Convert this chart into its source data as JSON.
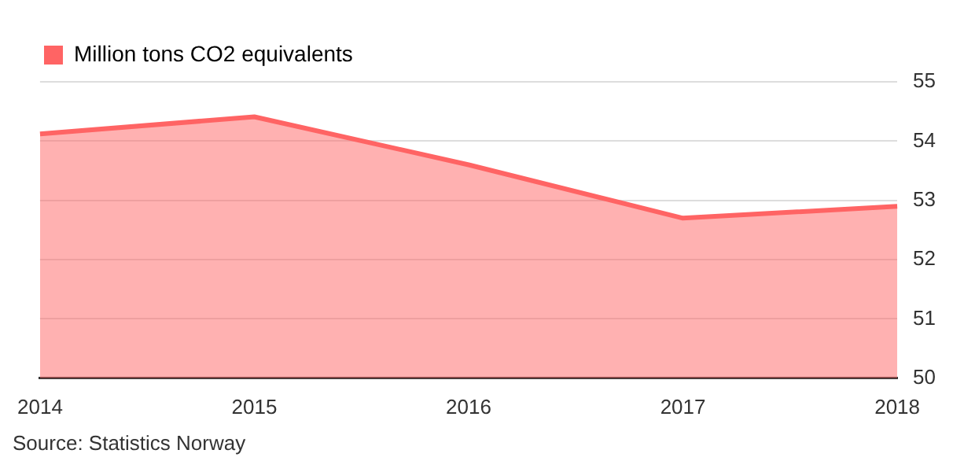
{
  "chart_data": {
    "type": "area",
    "categories": [
      "2014",
      "2015",
      "2016",
      "2017",
      "2018"
    ],
    "series": [
      {
        "name": "Million tons CO2 equivalents",
        "color": "#ff6464",
        "values": [
          54.12,
          54.41,
          53.6,
          52.7,
          52.9
        ]
      }
    ],
    "ylim": [
      50,
      55
    ],
    "yticks": [
      50,
      51,
      52,
      53,
      54,
      55
    ],
    "grid": "y",
    "legend": "top left",
    "annotations": [
      "Source: Statistics Norway"
    ]
  }
}
